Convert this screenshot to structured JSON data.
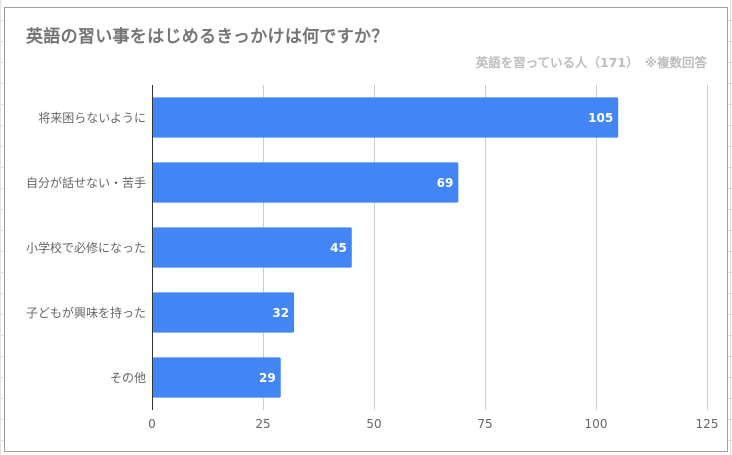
{
  "chart_data": {
    "type": "bar",
    "orientation": "horizontal",
    "title": "英語の習い事をはじめるきっかけは何ですか？",
    "subtitle": "英語を習っている人（171）　※複数回答",
    "categories": [
      "将来困らないように",
      "自分が話せない・苦手",
      "小学校で必修になった",
      "子どもが興味を持った",
      "その他"
    ],
    "values": [
      105,
      69,
      45,
      32,
      29
    ],
    "xlim": [
      0,
      125
    ],
    "xticks": [
      0,
      25,
      50,
      75,
      100,
      125
    ],
    "xlabel": "",
    "ylabel": "",
    "grid": true,
    "legend": "none",
    "bar_color": "#4285f4",
    "data_labels": true
  },
  "colors": {
    "title": "#757575",
    "subtitle": "#bdbdbd",
    "grid": "#cccccc",
    "axis": "#333333",
    "tick_label": "#666666",
    "data_label": "#ffffff"
  }
}
